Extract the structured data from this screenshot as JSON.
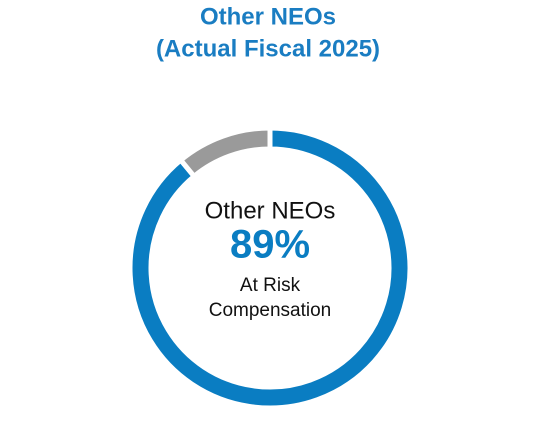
{
  "chart_data": {
    "type": "donut",
    "title": "Other NEOs",
    "subtitle": "(Actual Fiscal 2025)",
    "center_top": "Other NEOs",
    "center_bottom": [
      "At Risk",
      "Compensation"
    ],
    "categories": [
      null,
      null
    ],
    "values": [
      89,
      11
    ],
    "value_labels": [
      "89%",
      null
    ],
    "colors": [
      "#0a7dc2",
      "#9a9a9a"
    ]
  }
}
